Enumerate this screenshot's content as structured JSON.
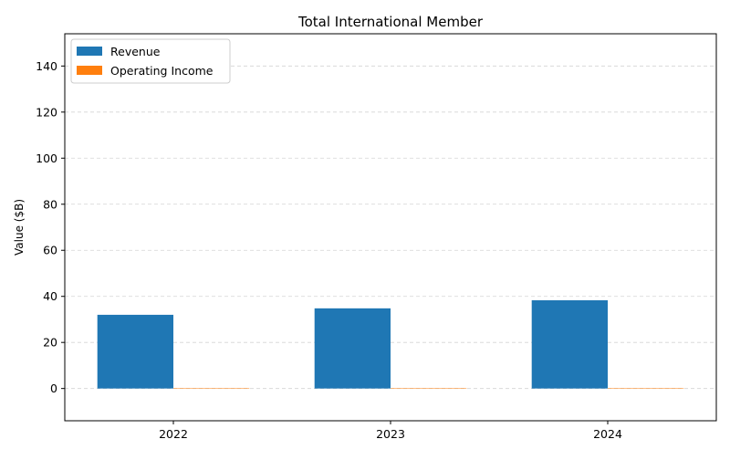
{
  "chart_data": {
    "type": "bar",
    "title": "Total International Member",
    "xlabel": "",
    "ylabel": "Value ($B)",
    "categories": [
      "2022",
      "2023",
      "2024"
    ],
    "series": [
      {
        "name": "Revenue",
        "values": [
          32.0,
          34.8,
          38.3
        ],
        "color": "#1f77b4"
      },
      {
        "name": "Operating Income",
        "values": [
          0.1,
          0.1,
          0.1
        ],
        "color": "#ff7f0e"
      }
    ],
    "ylim": [
      -14,
      154
    ],
    "yticks": [
      0,
      20,
      40,
      60,
      80,
      100,
      120,
      140
    ],
    "ytick_labels": [
      "0",
      "20",
      "40",
      "60",
      "80",
      "100",
      "120",
      "140"
    ],
    "grid": "y-dashed",
    "legend_position": "top-left"
  }
}
